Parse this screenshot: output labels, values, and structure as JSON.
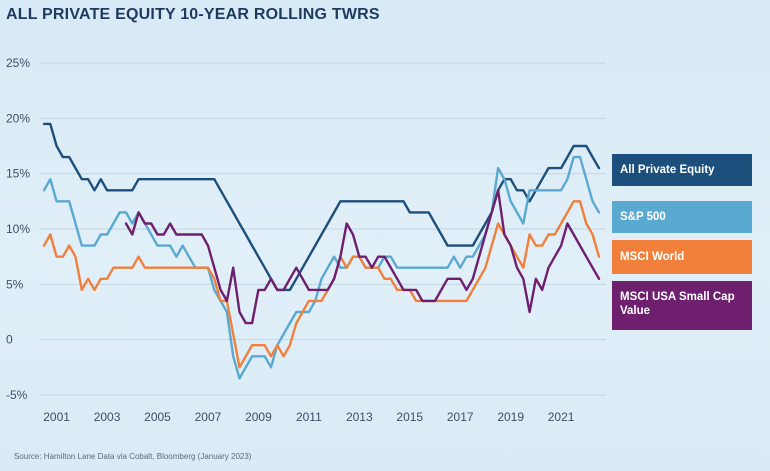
{
  "chart_data": {
    "type": "line",
    "title": "ALL PRIVATE EQUITY 10-YEAR ROLLING TWRS",
    "xlabel": "",
    "ylabel": "",
    "xlim": [
      2000.5,
      2022.7
    ],
    "ylim": [
      -5,
      25
    ],
    "y_ticks": [
      25,
      20,
      15,
      10,
      5,
      0,
      -5
    ],
    "y_tick_labels": [
      "25%",
      "20%",
      "15%",
      "10%",
      "5%",
      "0",
      "-5%"
    ],
    "x_ticks": [
      2001,
      2003,
      2005,
      2007,
      2009,
      2011,
      2013,
      2015,
      2017,
      2019,
      2021
    ],
    "x_tick_labels": [
      "2001",
      "2003",
      "2005",
      "2007",
      "2009",
      "2011",
      "2013",
      "2015",
      "2017",
      "2019",
      "2021"
    ],
    "grid": "horizontal",
    "legend_placement": "right",
    "series": [
      {
        "name": "All Private Equity",
        "color": "#1d4f7c",
        "x": [
          2000.5,
          2000.75,
          2001.0,
          2001.25,
          2001.5,
          2001.75,
          2002.0,
          2002.25,
          2002.5,
          2002.75,
          2003.0,
          2003.25,
          2003.5,
          2003.75,
          2004.0,
          2004.25,
          2004.5,
          2004.75,
          2005.0,
          2005.25,
          2005.5,
          2005.75,
          2006.0,
          2006.25,
          2006.5,
          2006.75,
          2007.0,
          2007.25,
          2007.5,
          2007.75,
          2008.0,
          2008.25,
          2008.5,
          2008.75,
          2009.0,
          2009.25,
          2009.5,
          2009.75,
          2010.0,
          2010.25,
          2010.5,
          2010.75,
          2011.0,
          2011.25,
          2011.5,
          2011.75,
          2012.0,
          2012.25,
          2012.5,
          2012.75,
          2013.0,
          2013.25,
          2013.5,
          2013.75,
          2014.0,
          2014.25,
          2014.5,
          2014.75,
          2015.0,
          2015.25,
          2015.5,
          2015.75,
          2016.0,
          2016.25,
          2016.5,
          2016.75,
          2017.0,
          2017.25,
          2017.5,
          2017.75,
          2018.0,
          2018.25,
          2018.5,
          2018.75,
          2019.0,
          2019.25,
          2019.5,
          2019.75,
          2020.0,
          2020.25,
          2020.5,
          2020.75,
          2021.0,
          2021.25,
          2021.5,
          2021.75,
          2022.0,
          2022.25,
          2022.5
        ],
        "values": [
          19.5,
          19.5,
          17.5,
          16.5,
          16.5,
          15.5,
          14.5,
          14.5,
          13.5,
          14.5,
          13.5,
          13.5,
          13.5,
          13.5,
          13.5,
          14.5,
          14.5,
          14.5,
          14.5,
          14.5,
          14.5,
          14.5,
          14.5,
          14.5,
          14.5,
          14.5,
          14.5,
          14.5,
          13.5,
          12.5,
          11.5,
          10.5,
          9.5,
          8.5,
          7.5,
          6.5,
          5.5,
          4.5,
          4.5,
          4.5,
          5.5,
          6.5,
          7.5,
          8.5,
          9.5,
          10.5,
          11.5,
          12.5,
          12.5,
          12.5,
          12.5,
          12.5,
          12.5,
          12.5,
          12.5,
          12.5,
          12.5,
          12.5,
          11.5,
          11.5,
          11.5,
          11.5,
          10.5,
          9.5,
          8.5,
          8.5,
          8.5,
          8.5,
          8.5,
          9.5,
          10.5,
          11.5,
          13.5,
          14.5,
          14.5,
          13.5,
          13.5,
          12.5,
          13.5,
          14.5,
          15.5,
          15.5,
          15.5,
          16.5,
          17.5,
          17.5,
          17.5,
          16.5,
          15.5
        ]
      },
      {
        "name": "S&P 500",
        "color": "#5aa9d1",
        "x": [
          2000.5,
          2000.75,
          2001.0,
          2001.25,
          2001.5,
          2001.75,
          2002.0,
          2002.25,
          2002.5,
          2002.75,
          2003.0,
          2003.25,
          2003.5,
          2003.75,
          2004.0,
          2004.25,
          2004.5,
          2004.75,
          2005.0,
          2005.25,
          2005.5,
          2005.75,
          2006.0,
          2006.25,
          2006.5,
          2006.75,
          2007.0,
          2007.25,
          2007.5,
          2007.75,
          2008.0,
          2008.25,
          2008.5,
          2008.75,
          2009.0,
          2009.25,
          2009.5,
          2009.75,
          2010.0,
          2010.25,
          2010.5,
          2010.75,
          2011.0,
          2011.25,
          2011.5,
          2011.75,
          2012.0,
          2012.25,
          2012.5,
          2012.75,
          2013.0,
          2013.25,
          2013.5,
          2013.75,
          2014.0,
          2014.25,
          2014.5,
          2014.75,
          2015.0,
          2015.25,
          2015.5,
          2015.75,
          2016.0,
          2016.25,
          2016.5,
          2016.75,
          2017.0,
          2017.25,
          2017.5,
          2017.75,
          2018.0,
          2018.25,
          2018.5,
          2018.75,
          2019.0,
          2019.25,
          2019.5,
          2019.75,
          2020.0,
          2020.25,
          2020.5,
          2020.75,
          2021.0,
          2021.25,
          2021.5,
          2021.75,
          2022.0,
          2022.25,
          2022.5
        ],
        "values": [
          13.5,
          14.5,
          12.5,
          12.5,
          12.5,
          10.5,
          8.5,
          8.5,
          8.5,
          9.5,
          9.5,
          10.5,
          11.5,
          11.5,
          10.5,
          11.5,
          10.5,
          9.5,
          8.5,
          8.5,
          8.5,
          7.5,
          8.5,
          7.5,
          6.5,
          6.5,
          6.5,
          4.5,
          3.5,
          2.5,
          -1.5,
          -3.5,
          -2.5,
          -1.5,
          -1.5,
          -1.5,
          -2.5,
          -0.5,
          0.5,
          1.5,
          2.5,
          2.5,
          2.5,
          3.5,
          5.5,
          6.5,
          7.5,
          6.5,
          6.5,
          7.5,
          7.5,
          6.5,
          6.5,
          6.5,
          7.5,
          7.5,
          6.5,
          6.5,
          6.5,
          6.5,
          6.5,
          6.5,
          6.5,
          6.5,
          6.5,
          7.5,
          6.5,
          7.5,
          7.5,
          8.5,
          9.5,
          11.5,
          15.5,
          14.5,
          12.5,
          11.5,
          10.5,
          13.5,
          13.5,
          13.5,
          13.5,
          13.5,
          13.5,
          14.5,
          16.5,
          16.5,
          14.5,
          12.5,
          11.5
        ]
      },
      {
        "name": "MSCI World",
        "color": "#f0803c",
        "x": [
          2000.5,
          2000.75,
          2001.0,
          2001.25,
          2001.5,
          2001.75,
          2002.0,
          2002.25,
          2002.5,
          2002.75,
          2003.0,
          2003.25,
          2003.5,
          2003.75,
          2004.0,
          2004.25,
          2004.5,
          2004.75,
          2005.0,
          2005.25,
          2005.5,
          2005.75,
          2006.0,
          2006.25,
          2006.5,
          2006.75,
          2007.0,
          2007.25,
          2007.5,
          2007.75,
          2008.0,
          2008.25,
          2008.5,
          2008.75,
          2009.0,
          2009.25,
          2009.5,
          2009.75,
          2010.0,
          2010.25,
          2010.5,
          2010.75,
          2011.0,
          2011.25,
          2011.5,
          2011.75,
          2012.0,
          2012.25,
          2012.5,
          2012.75,
          2013.0,
          2013.25,
          2013.5,
          2013.75,
          2014.0,
          2014.25,
          2014.5,
          2014.75,
          2015.0,
          2015.25,
          2015.5,
          2015.75,
          2016.0,
          2016.25,
          2016.5,
          2016.75,
          2017.0,
          2017.25,
          2017.5,
          2017.75,
          2018.0,
          2018.25,
          2018.5,
          2018.75,
          2019.0,
          2019.25,
          2019.5,
          2019.75,
          2020.0,
          2020.25,
          2020.5,
          2020.75,
          2021.0,
          2021.25,
          2021.5,
          2021.75,
          2022.0,
          2022.25,
          2022.5
        ],
        "values": [
          8.5,
          9.5,
          7.5,
          7.5,
          8.5,
          7.5,
          4.5,
          5.5,
          4.5,
          5.5,
          5.5,
          6.5,
          6.5,
          6.5,
          6.5,
          7.5,
          6.5,
          6.5,
          6.5,
          6.5,
          6.5,
          6.5,
          6.5,
          6.5,
          6.5,
          6.5,
          6.5,
          5.5,
          3.5,
          3.5,
          0.5,
          -2.5,
          -1.5,
          -0.5,
          -0.5,
          -0.5,
          -1.5,
          -0.5,
          -1.5,
          -0.5,
          1.5,
          2.5,
          3.5,
          3.5,
          3.5,
          4.5,
          5.5,
          7.5,
          6.5,
          7.5,
          7.5,
          6.5,
          6.5,
          6.5,
          5.5,
          5.5,
          4.5,
          4.5,
          4.5,
          3.5,
          3.5,
          3.5,
          3.5,
          3.5,
          3.5,
          3.5,
          3.5,
          3.5,
          4.5,
          5.5,
          6.5,
          8.5,
          10.5,
          9.5,
          8.5,
          7.5,
          6.5,
          9.5,
          8.5,
          8.5,
          9.5,
          9.5,
          10.5,
          11.5,
          12.5,
          12.5,
          10.5,
          9.5,
          7.5
        ]
      },
      {
        "name": "MSCI USA Small Cap Value",
        "color": "#6e1f6e",
        "x": [
          2003.75,
          2004.0,
          2004.25,
          2004.5,
          2004.75,
          2005.0,
          2005.25,
          2005.5,
          2005.75,
          2006.0,
          2006.25,
          2006.5,
          2006.75,
          2007.0,
          2007.25,
          2007.5,
          2007.75,
          2008.0,
          2008.25,
          2008.5,
          2008.75,
          2009.0,
          2009.25,
          2009.5,
          2009.75,
          2010.0,
          2010.25,
          2010.5,
          2010.75,
          2011.0,
          2011.25,
          2011.5,
          2011.75,
          2012.0,
          2012.25,
          2012.5,
          2012.75,
          2013.0,
          2013.25,
          2013.5,
          2013.75,
          2014.0,
          2014.25,
          2014.5,
          2014.75,
          2015.0,
          2015.25,
          2015.5,
          2015.75,
          2016.0,
          2016.25,
          2016.5,
          2016.75,
          2017.0,
          2017.25,
          2017.5,
          2017.75,
          2018.0,
          2018.25,
          2018.5,
          2018.75,
          2019.0,
          2019.25,
          2019.5,
          2019.75,
          2020.0,
          2020.25,
          2020.5,
          2020.75,
          2021.0,
          2021.25,
          2021.5,
          2021.75,
          2022.0,
          2022.25,
          2022.5
        ],
        "values": [
          10.5,
          9.5,
          11.5,
          10.5,
          10.5,
          9.5,
          9.5,
          10.5,
          9.5,
          9.5,
          9.5,
          9.5,
          9.5,
          8.5,
          6.5,
          4.5,
          3.5,
          6.5,
          2.5,
          1.5,
          1.5,
          4.5,
          4.5,
          5.5,
          4.5,
          4.5,
          5.5,
          6.5,
          5.5,
          4.5,
          4.5,
          4.5,
          4.5,
          5.5,
          7.5,
          10.5,
          9.5,
          7.5,
          7.5,
          6.5,
          7.5,
          7.5,
          6.5,
          5.5,
          4.5,
          4.5,
          4.5,
          3.5,
          3.5,
          3.5,
          4.5,
          5.5,
          5.5,
          5.5,
          4.5,
          5.5,
          7.5,
          9.5,
          11.5,
          13.5,
          9.5,
          8.5,
          6.5,
          5.5,
          2.5,
          5.5,
          4.5,
          6.5,
          7.5,
          8.5,
          10.5,
          9.5,
          8.5,
          7.5,
          6.5,
          5.5
        ]
      }
    ],
    "source": "Source: Hamilton Lane Data via Cobalt, Bloomberg (January 2023)"
  }
}
